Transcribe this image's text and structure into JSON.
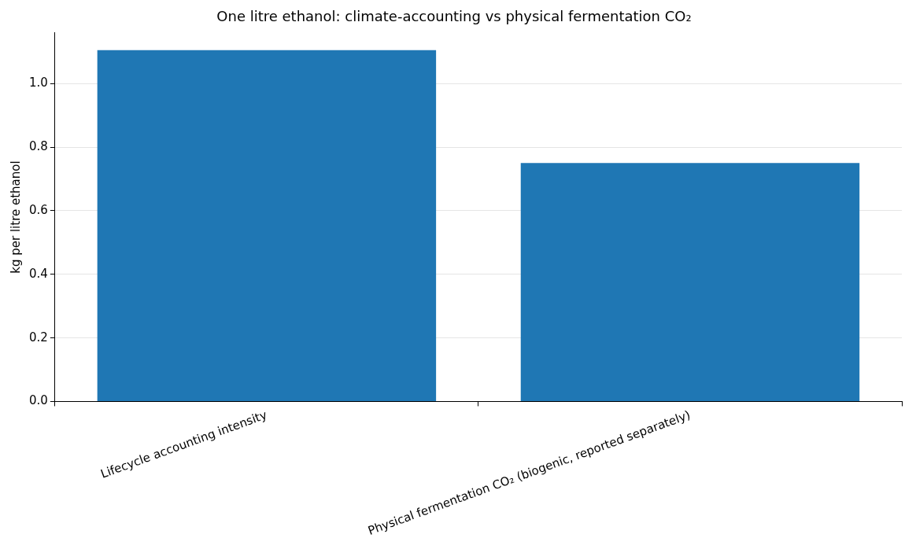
{
  "chart_data": {
    "type": "bar",
    "title": "One litre ethanol: climate-accounting vs physical fermentation CO₂",
    "ylabel": "kg per litre ethanol",
    "categories": [
      "Lifecycle accounting intensity",
      "Physical fermentation CO₂ (biogenic, reported separately)"
    ],
    "values": [
      1.105,
      0.75
    ],
    "color": "#1f77b4",
    "ylim": [
      0,
      1.16
    ],
    "yticks": [
      {
        "value": 0,
        "label": "0.0"
      },
      0.2,
      0.4,
      0.6,
      0.8,
      {
        "value": 1,
        "label": "1.0"
      }
    ],
    "grid": "y"
  }
}
